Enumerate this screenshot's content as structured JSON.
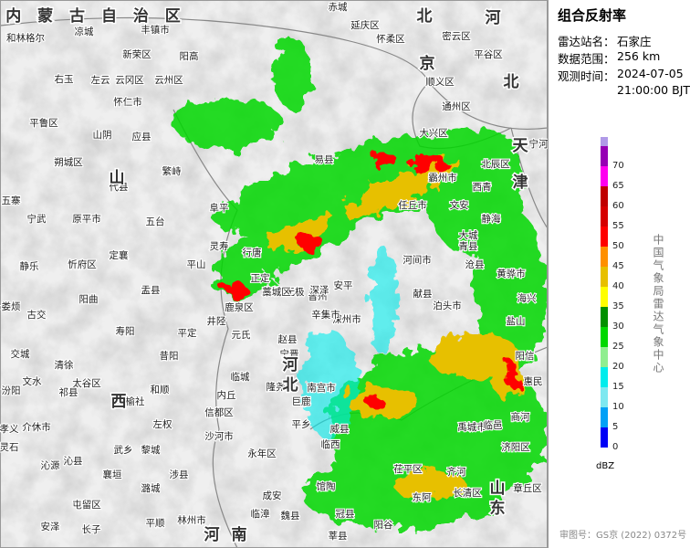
{
  "map": {
    "region": "内 蒙 古 自 治 区",
    "places": [
      "和林格尔",
      "凉城",
      "丰镇市",
      "新荣区",
      "阳高",
      "右玉",
      "左云",
      "云冈区",
      "云州区",
      "怀仁市",
      "山阴",
      "应县",
      "朔城区",
      "平鲁区",
      "代县",
      "繁峙",
      "五台",
      "原平市",
      "宁武",
      "五寨",
      "静乐",
      "忻府区",
      "定襄",
      "盂县",
      "阳曲",
      "平山",
      "灵寿",
      "行唐",
      "阜平",
      "易县",
      "赤城",
      "延庆区",
      "怀柔区",
      "密云区",
      "平谷区",
      "顺义区",
      "通州区",
      "大兴区",
      "霸州市",
      "文安",
      "大城",
      "任丘市",
      "河间市",
      "沧县",
      "青县",
      "泊头市",
      "献县",
      "深州市",
      "辛集市",
      "晋州",
      "安平",
      "深泽",
      "无极",
      "藁城区",
      "正定",
      "鹿泉区",
      "井陉",
      "元氏",
      "赵县",
      "宁晋",
      "隆尧",
      "临城",
      "内丘",
      "信都区",
      "沙河市",
      "永年区",
      "成安",
      "魏县",
      "临漳",
      "南宫市",
      "巨鹿",
      "平乡",
      "威县",
      "临西",
      "馆陶",
      "冠县",
      "莘县",
      "阳谷",
      "茌平区",
      "东阿",
      "长清区",
      "齐河",
      "禹城市",
      "临邑",
      "商河",
      "济阳区",
      "章丘区",
      "惠民",
      "阳信",
      "盐山",
      "黄骅市",
      "海兴",
      "宁河",
      "北辰区",
      "西青",
      "静海",
      "平定",
      "昔阳",
      "和顺",
      "左权",
      "榆社",
      "武乡",
      "襄垣",
      "黎城",
      "涉县",
      "潞城",
      "屯留区",
      "平顺",
      "林州市",
      "寿阳",
      "太谷区",
      "祁县",
      "清徐",
      "交城",
      "文水",
      "汾阳",
      "孝义",
      "介休市",
      "灵石",
      "沁县",
      "沁源",
      "安泽",
      "长子",
      "娄烦",
      "古交"
    ],
    "provinces": [
      "山",
      "西",
      "河",
      "北",
      "山",
      "东",
      "河",
      "南",
      "天",
      "津",
      "北",
      "京",
      "河",
      "北"
    ]
  },
  "panel": {
    "title": "组合反射率",
    "rows": [
      {
        "label": "雷达站名：",
        "value": "石家庄"
      },
      {
        "label": "数据范围：",
        "value": "256 km"
      },
      {
        "label": "观测时间：",
        "value": "2024-07-05"
      }
    ],
    "time_line2": "21:00:00 BJT",
    "legend": {
      "ticks": [
        0,
        5,
        10,
        15,
        20,
        25,
        30,
        35,
        40,
        45,
        50,
        55,
        60,
        65,
        70
      ],
      "colors": [
        "#0000f6",
        "#01a0f6",
        "#7ee8f0",
        "#00ecec",
        "#90ee90",
        "#00d800",
        "#019000",
        "#ffff00",
        "#e7c000",
        "#ff9000",
        "#ff0000",
        "#d60000",
        "#c00000",
        "#ff00f0",
        "#9600b4"
      ],
      "unit": "dBZ"
    },
    "agency": "中国气象局雷达气象中心",
    "approval": "审图号：GS京 (2022) 0372号"
  }
}
